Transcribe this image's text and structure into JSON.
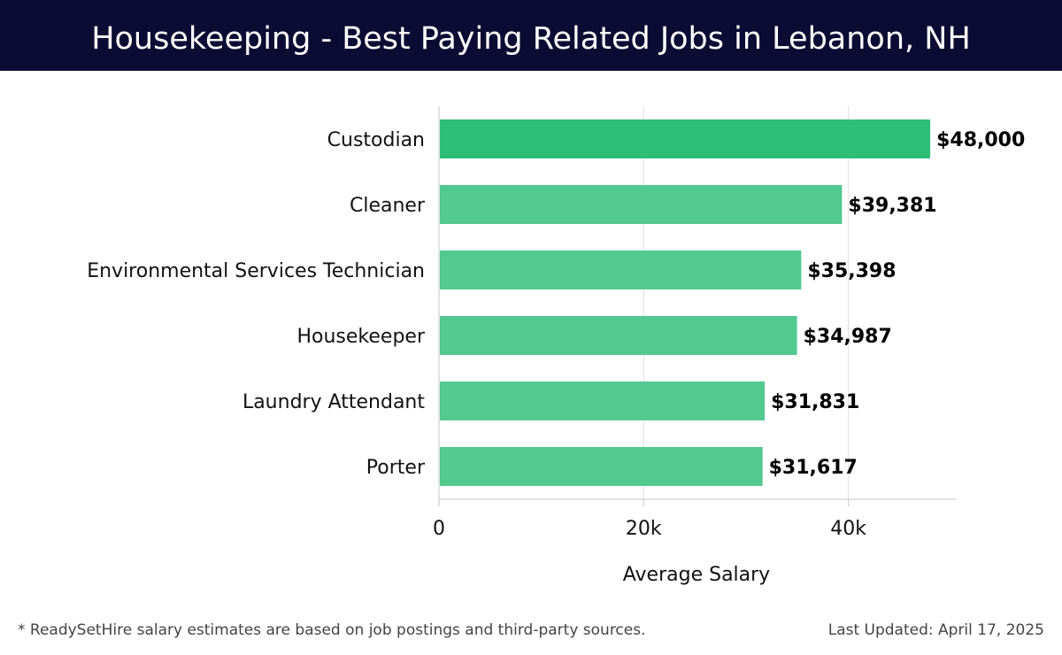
{
  "title": "Housekeeping - Best Paying Related Jobs in Lebanon, NH",
  "footnote": "* ReadySetHire salary estimates are based on job postings and third-party sources.",
  "last_updated": "Last Updated: April 17, 2025",
  "colors": {
    "header_bg": "#0b0b33",
    "top_bar": "#2dbe78",
    "bar": "#52c98f",
    "grid": "#e3e3e3"
  },
  "chart_data": {
    "type": "bar",
    "orientation": "horizontal",
    "categories": [
      "Custodian",
      "Cleaner",
      "Environmental Services Technician",
      "Housekeeper",
      "Laundry Attendant",
      "Porter"
    ],
    "values": [
      48000,
      39381,
      35398,
      34987,
      31831,
      31617
    ],
    "value_labels": [
      "$48,000",
      "$39,381",
      "$35,398",
      "$34,987",
      "$31,831",
      "$31,617"
    ],
    "xlabel": "Average Salary",
    "ylabel": "",
    "xlim": [
      0,
      50500
    ],
    "xticks": [
      0,
      20000,
      40000
    ],
    "xtick_labels": [
      "0",
      "20k",
      "40k"
    ],
    "grid": true,
    "legend": "none"
  }
}
